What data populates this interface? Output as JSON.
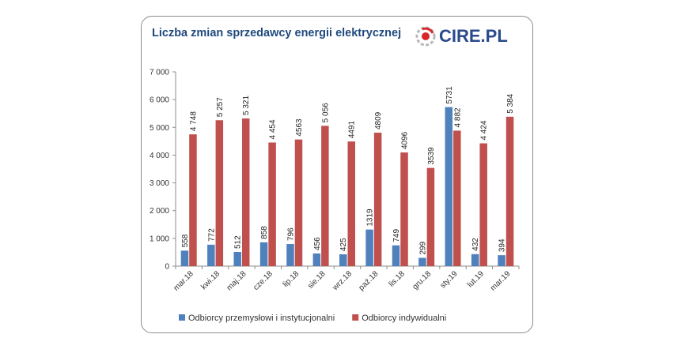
{
  "header": {
    "title": "Liczba zmian sprzedawcy energii elektrycznej",
    "logo_text": "CIRE.PL"
  },
  "colors": {
    "series1": "#4f81bd",
    "series2": "#c0504d",
    "title": "#1f497d",
    "logo": "#2a4a8c"
  },
  "chart_data": {
    "type": "bar",
    "title": "Liczba zmian sprzedawcy energii elektrycznej",
    "xlabel": "",
    "ylabel": "",
    "ylim": [
      0,
      7000
    ],
    "yticks": [
      "0",
      "1 000",
      "2 000",
      "3 000",
      "4 000",
      "5 000",
      "6 000",
      "7 000"
    ],
    "ytick_values": [
      0,
      1000,
      2000,
      3000,
      4000,
      5000,
      6000,
      7000
    ],
    "grid": false,
    "legend_position": "bottom",
    "categories": [
      "mar.18",
      "kwi.18",
      "maj.18",
      "cze.18",
      "lip.18",
      "sie.18",
      "wrz.18",
      "paź.18",
      "lis.18",
      "gru.18",
      "sty.19",
      "lut.19",
      "mar.19"
    ],
    "series": [
      {
        "name": "Odbiorcy przemysłowi i instytucjonalni",
        "values": [
          558,
          772,
          512,
          858,
          796,
          456,
          425,
          1319,
          749,
          299,
          5731,
          432,
          394
        ],
        "labels": [
          "558",
          "772",
          "512",
          "858",
          "796",
          "456",
          "425",
          "1319",
          "749",
          "299",
          "5731",
          "432",
          "394"
        ]
      },
      {
        "name": "Odbiorcy indywidualni",
        "values": [
          4748,
          5257,
          5321,
          4454,
          4563,
          5056,
          4491,
          4809,
          4096,
          3539,
          4882,
          4424,
          5384
        ],
        "labels": [
          "4 748",
          "5 257",
          "5 321",
          "4 454",
          "4563",
          "5 056",
          "4491",
          "4809",
          "4096",
          "3539",
          "4 882",
          "4 424",
          "5 384"
        ]
      }
    ]
  }
}
